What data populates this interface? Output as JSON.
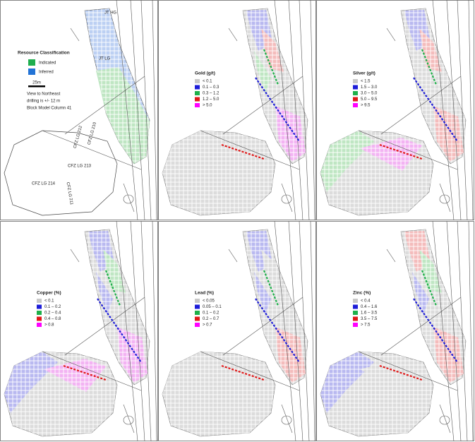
{
  "classification_panel": {
    "zone_labels": [
      "JT HG",
      "JT LG",
      "CFZ LG 212",
      "CFZ LG 210",
      "CFZ LG 213",
      "CFZ LG 214",
      "CFZ LG 211"
    ],
    "legend": {
      "title": "Resource Classification",
      "items": [
        {
          "label": "Indicated",
          "color": "#1fae4e"
        },
        {
          "label": "Inferred",
          "color": "#2273d6"
        }
      ]
    },
    "scale_bar": "25m",
    "notes": [
      "View to Northeast",
      "drilling is +/- 12 m",
      "Block Model Column 41"
    ]
  },
  "grade_panels": [
    {
      "title": "Gold (g/t)",
      "items": [
        {
          "label": "< 0.1",
          "color": "#c8c8c8"
        },
        {
          "label": "0.1 – 0.3",
          "color": "#1c1cd8"
        },
        {
          "label": "0.3 – 1.2",
          "color": "#1fb04a"
        },
        {
          "label": "1.2 – 5.0",
          "color": "#e01818"
        },
        {
          "label": "> 5.0",
          "color": "#ff00ff"
        }
      ]
    },
    {
      "title": "Silver (g/t)",
      "items": [
        {
          "label": "< 1.5",
          "color": "#c8c8c8"
        },
        {
          "label": "1.5 – 3.0",
          "color": "#1c1cd8"
        },
        {
          "label": "3.0 – 5.0",
          "color": "#1fb04a"
        },
        {
          "label": "5.0 – 9.5",
          "color": "#e01818"
        },
        {
          "label": "> 9.5",
          "color": "#ff00ff"
        }
      ]
    },
    {
      "title": "Copper (%)",
      "items": [
        {
          "label": "< 0.1",
          "color": "#c8c8c8"
        },
        {
          "label": "0.1 – 0.2",
          "color": "#1c1cd8"
        },
        {
          "label": "0.2 – 0.4",
          "color": "#1fb04a"
        },
        {
          "label": "0.4 – 0.8",
          "color": "#e01818"
        },
        {
          "label": "> 0.8",
          "color": "#ff00ff"
        }
      ]
    },
    {
      "title": "Lead (%)",
      "items": [
        {
          "label": "< 0.05",
          "color": "#c8c8c8"
        },
        {
          "label": "0.05 – 0.1",
          "color": "#1c1cd8"
        },
        {
          "label": "0.1 – 0.2",
          "color": "#1fb04a"
        },
        {
          "label": "0.2 – 0.7",
          "color": "#e01818"
        },
        {
          "label": "> 0.7",
          "color": "#ff00ff"
        }
      ]
    },
    {
      "title": "Zinc (%)",
      "items": [
        {
          "label": "< 0.4",
          "color": "#c8c8c8"
        },
        {
          "label": "0.4 – 1.6",
          "color": "#1c1cd8"
        },
        {
          "label": "1.6 – 3.5",
          "color": "#1fb04a"
        },
        {
          "label": "3.5 – 7.5",
          "color": "#e01818"
        },
        {
          "label": "> 7.5",
          "color": "#ff00ff"
        }
      ]
    }
  ]
}
